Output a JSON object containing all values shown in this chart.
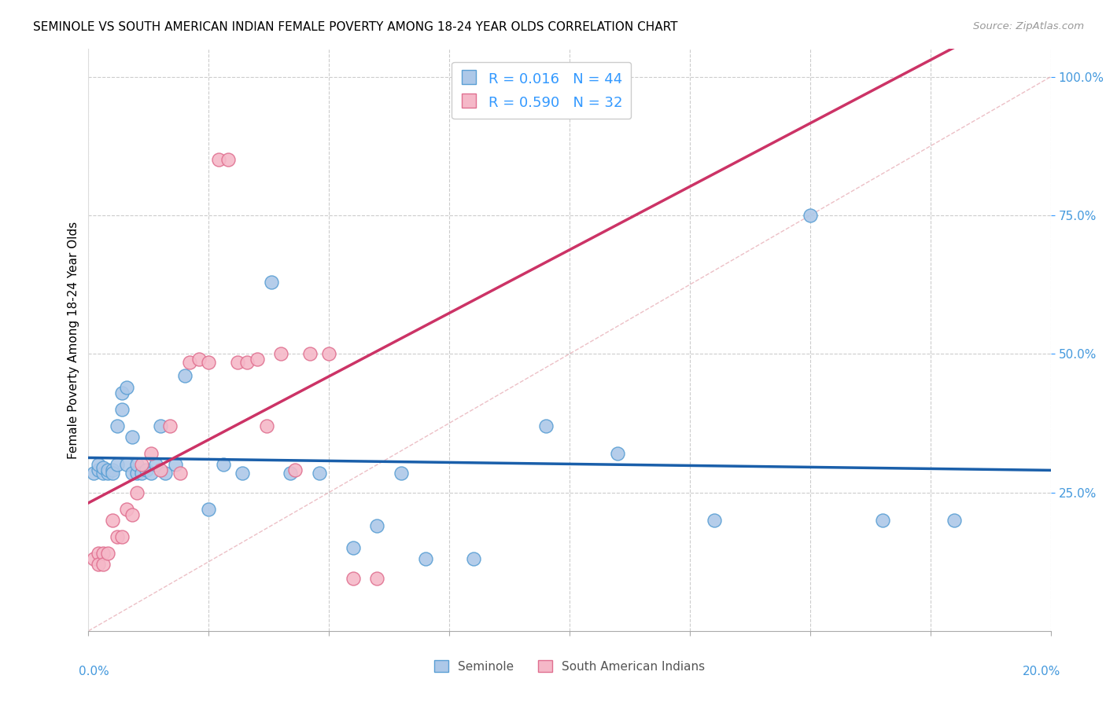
{
  "title": "SEMINOLE VS SOUTH AMERICAN INDIAN FEMALE POVERTY AMONG 18-24 YEAR OLDS CORRELATION CHART",
  "source": "Source: ZipAtlas.com",
  "ylabel": "Female Poverty Among 18-24 Year Olds",
  "xlim": [
    0.0,
    0.2
  ],
  "ylim": [
    0.0,
    1.05
  ],
  "seminole_R": 0.016,
  "seminole_N": 44,
  "sai_R": 0.59,
  "sai_N": 32,
  "color_seminole_fill": "#adc8e8",
  "color_seminole_edge": "#5a9fd4",
  "color_sai_fill": "#f5b8c8",
  "color_sai_edge": "#e07090",
  "color_seminole_line": "#1a5faa",
  "color_sai_line": "#cc3366",
  "color_diagonal": "#ddaaaa",
  "seminole_x": [
    0.001,
    0.002,
    0.002,
    0.003,
    0.003,
    0.004,
    0.004,
    0.005,
    0.005,
    0.006,
    0.006,
    0.007,
    0.007,
    0.008,
    0.008,
    0.009,
    0.009,
    0.01,
    0.01,
    0.011,
    0.012,
    0.013,
    0.014,
    0.015,
    0.016,
    0.018,
    0.02,
    0.025,
    0.028,
    0.032,
    0.038,
    0.042,
    0.048,
    0.055,
    0.06,
    0.065,
    0.07,
    0.08,
    0.095,
    0.11,
    0.13,
    0.15,
    0.165,
    0.18
  ],
  "seminole_y": [
    0.285,
    0.29,
    0.3,
    0.285,
    0.295,
    0.285,
    0.29,
    0.29,
    0.285,
    0.3,
    0.37,
    0.4,
    0.43,
    0.44,
    0.3,
    0.285,
    0.35,
    0.285,
    0.3,
    0.285,
    0.29,
    0.285,
    0.3,
    0.37,
    0.285,
    0.3,
    0.46,
    0.22,
    0.3,
    0.285,
    0.63,
    0.285,
    0.285,
    0.15,
    0.19,
    0.285,
    0.13,
    0.13,
    0.37,
    0.32,
    0.2,
    0.75,
    0.2,
    0.2
  ],
  "sai_x": [
    0.001,
    0.002,
    0.002,
    0.003,
    0.003,
    0.004,
    0.005,
    0.006,
    0.007,
    0.008,
    0.009,
    0.01,
    0.011,
    0.013,
    0.015,
    0.017,
    0.019,
    0.021,
    0.023,
    0.025,
    0.027,
    0.029,
    0.031,
    0.033,
    0.035,
    0.037,
    0.04,
    0.043,
    0.046,
    0.05,
    0.055,
    0.06
  ],
  "sai_y": [
    0.13,
    0.14,
    0.12,
    0.14,
    0.12,
    0.14,
    0.2,
    0.17,
    0.17,
    0.22,
    0.21,
    0.25,
    0.3,
    0.32,
    0.29,
    0.37,
    0.285,
    0.485,
    0.49,
    0.485,
    0.85,
    0.85,
    0.485,
    0.485,
    0.49,
    0.37,
    0.5,
    0.29,
    0.5,
    0.5,
    0.095,
    0.095
  ]
}
